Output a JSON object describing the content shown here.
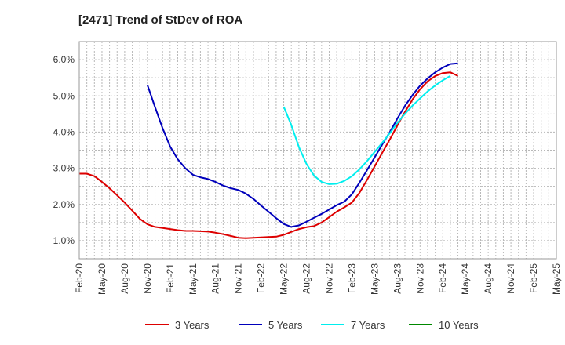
{
  "chart_data": {
    "type": "line",
    "title": "[2471]  Trend of StDev of ROA",
    "xlabel": "",
    "ylabel": "",
    "x_tick_labels": [
      "Feb-20",
      "May-20",
      "Aug-20",
      "Nov-20",
      "Feb-21",
      "May-21",
      "Aug-21",
      "Nov-21",
      "Feb-22",
      "May-22",
      "Aug-22",
      "Nov-22",
      "Feb-23",
      "May-23",
      "Aug-23",
      "Nov-23",
      "Feb-24",
      "May-24",
      "Aug-24",
      "Nov-24",
      "Feb-25",
      "May-25"
    ],
    "y_ticks": [
      1.0,
      2.0,
      3.0,
      4.0,
      5.0,
      6.0
    ],
    "y_tick_labels": [
      "1.0%",
      "2.0%",
      "3.0%",
      "4.0%",
      "5.0%",
      "6.0%"
    ],
    "ylim": [
      0.5,
      6.5
    ],
    "grid": true,
    "legend_position": "bottom",
    "series": [
      {
        "name": "3 Years",
        "color": "#dd0000",
        "points": [
          [
            0,
            2.85
          ],
          [
            0.33,
            2.85
          ],
          [
            0.67,
            2.78
          ],
          [
            1,
            2.62
          ],
          [
            1.33,
            2.45
          ],
          [
            1.67,
            2.25
          ],
          [
            2,
            2.05
          ],
          [
            2.33,
            1.83
          ],
          [
            2.67,
            1.6
          ],
          [
            3,
            1.45
          ],
          [
            3.33,
            1.38
          ],
          [
            3.67,
            1.35
          ],
          [
            4,
            1.32
          ],
          [
            4.33,
            1.29
          ],
          [
            4.67,
            1.27
          ],
          [
            5,
            1.27
          ],
          [
            5.33,
            1.26
          ],
          [
            5.67,
            1.25
          ],
          [
            6,
            1.22
          ],
          [
            6.33,
            1.18
          ],
          [
            6.67,
            1.13
          ],
          [
            7,
            1.08
          ],
          [
            7.33,
            1.07
          ],
          [
            7.67,
            1.08
          ],
          [
            8,
            1.09
          ],
          [
            8.33,
            1.1
          ],
          [
            8.67,
            1.11
          ],
          [
            9,
            1.16
          ],
          [
            9.33,
            1.24
          ],
          [
            9.67,
            1.32
          ],
          [
            10,
            1.37
          ],
          [
            10.33,
            1.4
          ],
          [
            10.67,
            1.5
          ],
          [
            11,
            1.65
          ],
          [
            11.33,
            1.8
          ],
          [
            11.67,
            1.92
          ],
          [
            12,
            2.05
          ],
          [
            12.33,
            2.32
          ],
          [
            12.67,
            2.68
          ],
          [
            13,
            3.05
          ],
          [
            13.33,
            3.42
          ],
          [
            13.67,
            3.8
          ],
          [
            14,
            4.18
          ],
          [
            14.33,
            4.55
          ],
          [
            14.67,
            4.9
          ],
          [
            15,
            5.18
          ],
          [
            15.33,
            5.4
          ],
          [
            15.67,
            5.55
          ],
          [
            16,
            5.63
          ],
          [
            16.33,
            5.65
          ],
          [
            16.67,
            5.55
          ]
        ]
      },
      {
        "name": "5 Years",
        "color": "#0000bb",
        "points": [
          [
            3,
            5.3
          ],
          [
            3.33,
            4.7
          ],
          [
            3.67,
            4.1
          ],
          [
            4,
            3.6
          ],
          [
            4.33,
            3.25
          ],
          [
            4.67,
            3.0
          ],
          [
            5,
            2.82
          ],
          [
            5.33,
            2.75
          ],
          [
            5.67,
            2.7
          ],
          [
            6,
            2.62
          ],
          [
            6.33,
            2.52
          ],
          [
            6.67,
            2.45
          ],
          [
            7,
            2.4
          ],
          [
            7.33,
            2.3
          ],
          [
            7.67,
            2.15
          ],
          [
            8,
            1.97
          ],
          [
            8.33,
            1.8
          ],
          [
            8.67,
            1.62
          ],
          [
            9,
            1.46
          ],
          [
            9.33,
            1.38
          ],
          [
            9.67,
            1.42
          ],
          [
            10,
            1.52
          ],
          [
            10.33,
            1.63
          ],
          [
            10.67,
            1.74
          ],
          [
            11,
            1.86
          ],
          [
            11.33,
            1.98
          ],
          [
            11.67,
            2.08
          ],
          [
            12,
            2.28
          ],
          [
            12.33,
            2.6
          ],
          [
            12.67,
            2.95
          ],
          [
            13,
            3.3
          ],
          [
            13.33,
            3.65
          ],
          [
            13.67,
            4.0
          ],
          [
            14,
            4.37
          ],
          [
            14.33,
            4.72
          ],
          [
            14.67,
            5.02
          ],
          [
            15,
            5.28
          ],
          [
            15.33,
            5.48
          ],
          [
            15.67,
            5.65
          ],
          [
            16,
            5.78
          ],
          [
            16.33,
            5.88
          ],
          [
            16.67,
            5.9
          ]
        ]
      },
      {
        "name": "7 Years",
        "color": "#00eeee",
        "points": [
          [
            9,
            4.7
          ],
          [
            9.33,
            4.2
          ],
          [
            9.67,
            3.58
          ],
          [
            10,
            3.12
          ],
          [
            10.33,
            2.8
          ],
          [
            10.67,
            2.62
          ],
          [
            11,
            2.56
          ],
          [
            11.33,
            2.57
          ],
          [
            11.67,
            2.65
          ],
          [
            12,
            2.78
          ],
          [
            12.33,
            2.97
          ],
          [
            12.67,
            3.2
          ],
          [
            13,
            3.45
          ],
          [
            13.33,
            3.7
          ],
          [
            13.67,
            3.97
          ],
          [
            14,
            4.25
          ],
          [
            14.33,
            4.5
          ],
          [
            14.67,
            4.73
          ],
          [
            15,
            4.93
          ],
          [
            15.33,
            5.12
          ],
          [
            15.67,
            5.29
          ],
          [
            16,
            5.43
          ],
          [
            16.33,
            5.55
          ]
        ]
      },
      {
        "name": "10 Years",
        "color": "#008800",
        "points": []
      }
    ]
  }
}
